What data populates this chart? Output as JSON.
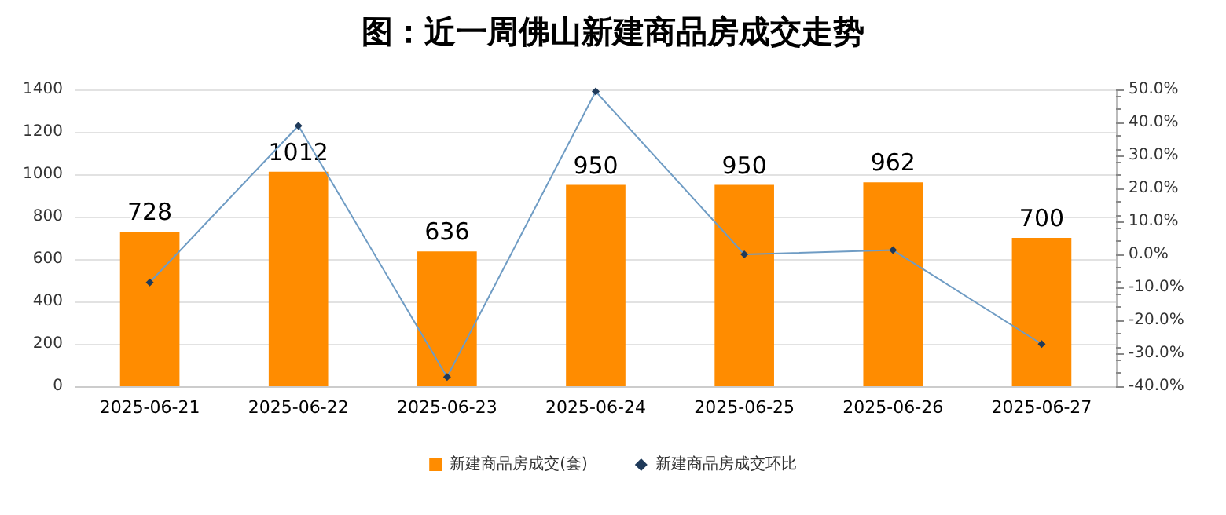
{
  "chart_data": {
    "type": "bar",
    "title": "图：近一周佛山新建商品房成交走势",
    "categories": [
      "2025-06-21",
      "2025-06-22",
      "2025-06-23",
      "2025-06-24",
      "2025-06-25",
      "2025-06-26",
      "2025-06-27"
    ],
    "series": [
      {
        "name": "新建商品房成交(套)",
        "color": "#ff8c00",
        "values": [
          728,
          1012,
          636,
          950,
          950,
          962,
          700
        ],
        "data_labels": true
      },
      {
        "name": "新建商品房成交环比",
        "type": "line",
        "axis": "y2",
        "color": "#6f9cc4",
        "marker": "diamond",
        "values": [
          -8.5,
          39.0,
          -37.2,
          49.4,
          0.0,
          1.3,
          -27.2
        ]
      }
    ],
    "ylim": [
      0,
      1400
    ],
    "yticks": [
      0,
      200,
      400,
      600,
      800,
      1000,
      1200,
      1400
    ],
    "y2lim": [
      -40,
      50
    ],
    "y2ticks": [
      {
        "value": -40,
        "label": "-40.0%"
      },
      {
        "value": -30,
        "label": "-30.0%"
      },
      {
        "value": -20,
        "label": "-20.0%"
      },
      {
        "value": -10,
        "label": "-10.0%"
      },
      {
        "value": 0,
        "label": "0.0%"
      },
      {
        "value": 10,
        "label": "10.0%"
      },
      {
        "value": 20,
        "label": "20.0%"
      },
      {
        "value": 30,
        "label": "30.0%"
      },
      {
        "value": 40,
        "label": "40.0%"
      },
      {
        "value": 50,
        "label": "50.0%"
      }
    ],
    "grid": "y",
    "legend": "bottom"
  }
}
